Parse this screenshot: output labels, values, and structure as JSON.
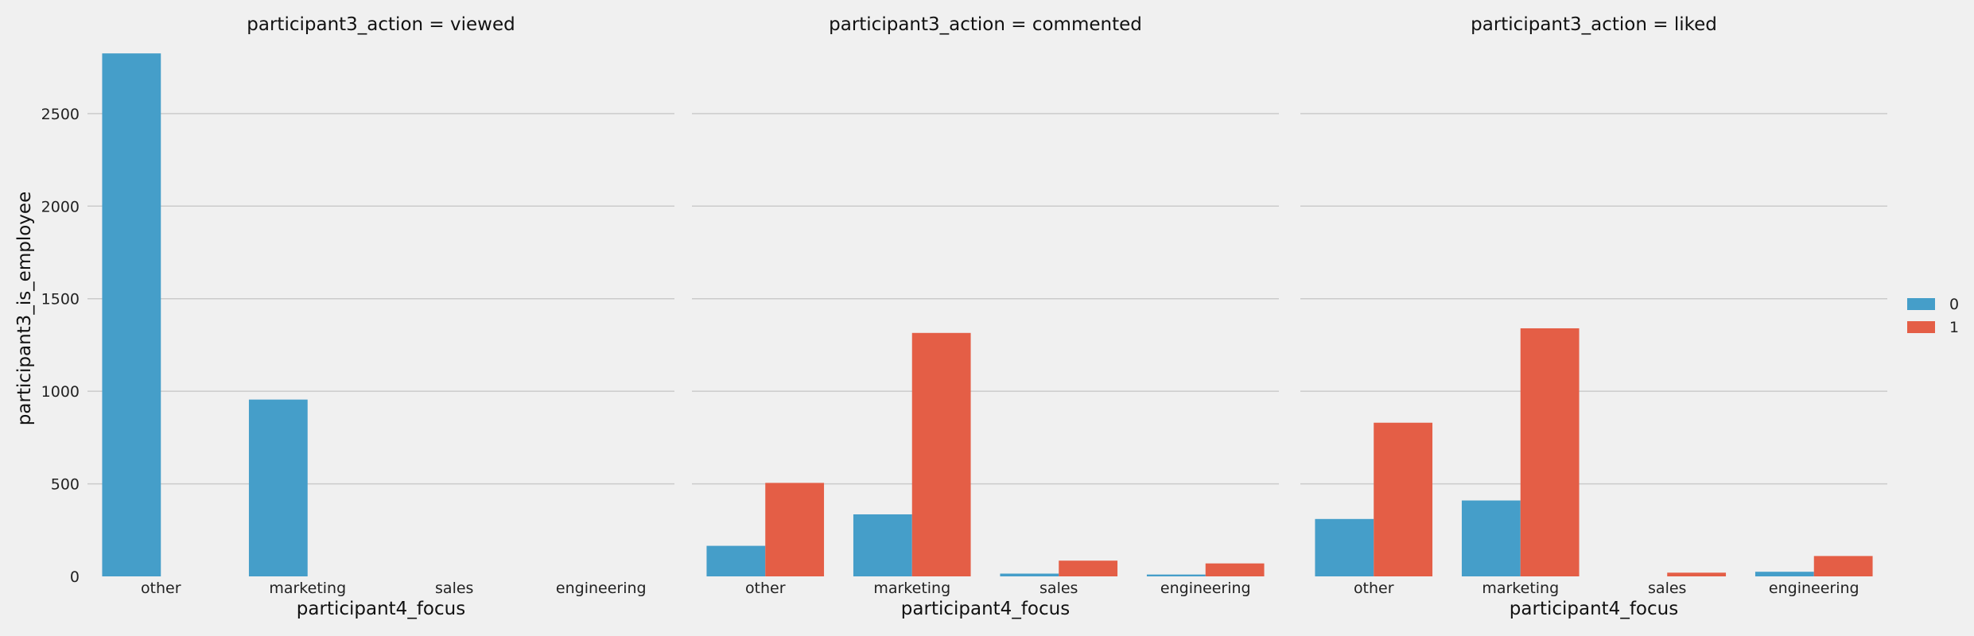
{
  "chart_data": {
    "type": "bar",
    "ylabel": "participant3_is_employee",
    "ylim": [
      0,
      2830
    ],
    "yticks": [
      "0",
      "500",
      "1000",
      "1500",
      "2000",
      "2500"
    ],
    "ytick_values": [
      0,
      500,
      1000,
      1500,
      2000,
      2500
    ],
    "legend": {
      "placement": "right",
      "entries": [
        "0",
        "1"
      ]
    },
    "colors": {
      "0": "#459ec9",
      "1": "#e45e46",
      "grid": "#cbcbcb",
      "background": "#f0f0f0"
    },
    "grid": true,
    "panels": [
      {
        "title": "participant3_action = viewed",
        "xlabel": "participant4_focus",
        "categories": [
          "other",
          "marketing",
          "sales",
          "engineering"
        ],
        "series": [
          {
            "name": "0",
            "values": [
              2825,
              955,
              0,
              0
            ]
          },
          {
            "name": "1",
            "values": [
              0,
              0,
              0,
              0
            ]
          }
        ]
      },
      {
        "title": "participant3_action = commented",
        "xlabel": "participant4_focus",
        "categories": [
          "other",
          "marketing",
          "sales",
          "engineering"
        ],
        "series": [
          {
            "name": "0",
            "values": [
              165,
              335,
              15,
              10
            ]
          },
          {
            "name": "1",
            "values": [
              505,
              1315,
              85,
              70
            ]
          }
        ]
      },
      {
        "title": "participant3_action = liked",
        "xlabel": "participant4_focus",
        "categories": [
          "other",
          "marketing",
          "sales",
          "engineering"
        ],
        "series": [
          {
            "name": "0",
            "values": [
              310,
              410,
              0,
              25
            ]
          },
          {
            "name": "1",
            "values": [
              830,
              1340,
              20,
              110
            ]
          }
        ]
      }
    ]
  }
}
